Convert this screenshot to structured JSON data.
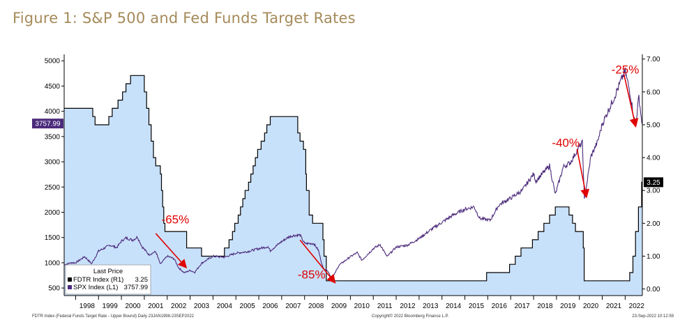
{
  "figure_title": "Figure 1: S&P 500 and Fed Funds Target Rates",
  "footer_left": "FDTR Index (Federal Funds Target Rate - Upper Bound)  Daily 23JAN1998-23SEP2022",
  "footer_center": "Copyright© 2022 Bloomberg Finance L.P.",
  "footer_right": "23-Sep-2022 10:12:59",
  "colors": {
    "spx": "#4b2a7b",
    "fdtr_line": "#000000",
    "fdtr_fill": "#c8e1fb",
    "annotation": "#e00000"
  },
  "chart_data": {
    "type": "line",
    "x_range": [
      1997.5,
      2022.75
    ],
    "y_left": {
      "range": [
        350,
        5100
      ],
      "ticks": [
        500,
        1000,
        1500,
        2000,
        2500,
        3000,
        3500,
        4000,
        4500,
        5000
      ]
    },
    "y_right": {
      "range": [
        -0.2,
        7.1
      ],
      "ticks": [
        "0.00",
        "1.00",
        "2.00",
        "3.00",
        "4.00",
        "5.00",
        "6.00",
        "7.00"
      ]
    },
    "x_ticks": [
      "1998",
      "1999",
      "2000",
      "2001",
      "2002",
      "2003",
      "2004",
      "2005",
      "2006",
      "2007",
      "2008",
      "2009",
      "2010",
      "2011",
      "2012",
      "2013",
      "2014",
      "2015",
      "2016",
      "2017",
      "2018",
      "2019",
      "2020",
      "2021",
      "2022"
    ],
    "legend": {
      "title": "Last Price",
      "placement": "bottom-left",
      "entries": [
        {
          "label": "FDTR Index  (R1)",
          "value": "3.25"
        },
        {
          "label": "SPX Index  (L1)",
          "value": "3757.99"
        }
      ]
    },
    "last_values": {
      "spx": "3757.99",
      "fdtr": "3.25"
    },
    "series": [
      {
        "label": "SPX Index",
        "axis": "left",
        "points": [
          [
            1997.5,
            960
          ],
          [
            1997.8,
            1000
          ],
          [
            1998.0,
            1000
          ],
          [
            1998.4,
            1120
          ],
          [
            1998.7,
            980
          ],
          [
            1999.0,
            1230
          ],
          [
            1999.5,
            1350
          ],
          [
            1999.8,
            1300
          ],
          [
            2000.0,
            1430
          ],
          [
            2000.2,
            1490
          ],
          [
            2000.5,
            1450
          ],
          [
            2000.7,
            1510
          ],
          [
            2000.9,
            1320
          ],
          [
            2001.2,
            1160
          ],
          [
            2001.5,
            1220
          ],
          [
            2001.7,
            970
          ],
          [
            2002.0,
            1130
          ],
          [
            2002.3,
            1080
          ],
          [
            2002.5,
            900
          ],
          [
            2002.75,
            800
          ],
          [
            2003.0,
            850
          ],
          [
            2003.2,
            810
          ],
          [
            2003.5,
            990
          ],
          [
            2004.0,
            1130
          ],
          [
            2004.5,
            1110
          ],
          [
            2005.0,
            1190
          ],
          [
            2005.5,
            1220
          ],
          [
            2006.0,
            1280
          ],
          [
            2006.4,
            1320
          ],
          [
            2006.5,
            1240
          ],
          [
            2007.0,
            1420
          ],
          [
            2007.3,
            1510
          ],
          [
            2007.5,
            1540
          ],
          [
            2007.8,
            1550
          ],
          [
            2008.0,
            1380
          ],
          [
            2008.4,
            1380
          ],
          [
            2008.6,
            1250
          ],
          [
            2008.8,
            900
          ],
          [
            2009.0,
            850
          ],
          [
            2009.2,
            680
          ],
          [
            2009.5,
            950
          ],
          [
            2010.0,
            1120
          ],
          [
            2010.3,
            1200
          ],
          [
            2010.5,
            1050
          ],
          [
            2011.0,
            1280
          ],
          [
            2011.3,
            1360
          ],
          [
            2011.6,
            1120
          ],
          [
            2012.0,
            1310
          ],
          [
            2012.5,
            1350
          ],
          [
            2013.0,
            1480
          ],
          [
            2013.5,
            1650
          ],
          [
            2014.0,
            1800
          ],
          [
            2014.5,
            1950
          ],
          [
            2015.0,
            2060
          ],
          [
            2015.4,
            2110
          ],
          [
            2015.65,
            1880
          ],
          [
            2016.1,
            1840
          ],
          [
            2016.5,
            2150
          ],
          [
            2017.0,
            2280
          ],
          [
            2017.5,
            2430
          ],
          [
            2018.0,
            2760
          ],
          [
            2018.1,
            2620
          ],
          [
            2018.7,
            2920
          ],
          [
            2018.95,
            2350
          ],
          [
            2019.3,
            2900
          ],
          [
            2019.6,
            2980
          ],
          [
            2020.0,
            3300
          ],
          [
            2020.13,
            3380
          ],
          [
            2020.22,
            2240
          ],
          [
            2020.5,
            3100
          ],
          [
            2020.8,
            3400
          ],
          [
            2021.0,
            3750
          ],
          [
            2021.5,
            4250
          ],
          [
            2021.9,
            4700
          ],
          [
            2022.0,
            4790
          ],
          [
            2022.2,
            4400
          ],
          [
            2022.45,
            3700
          ],
          [
            2022.6,
            4300
          ],
          [
            2022.73,
            3758
          ]
        ]
      },
      {
        "label": "FDTR Index",
        "axis": "right",
        "points": [
          [
            1997.5,
            5.5
          ],
          [
            1998.75,
            5.5
          ],
          [
            1998.75,
            5.25
          ],
          [
            1998.85,
            5.25
          ],
          [
            1998.85,
            5.0
          ],
          [
            1999.45,
            5.0
          ],
          [
            1999.45,
            5.25
          ],
          [
            1999.6,
            5.25
          ],
          [
            1999.6,
            5.5
          ],
          [
            1999.85,
            5.5
          ],
          [
            1999.85,
            5.75
          ],
          [
            2000.05,
            5.75
          ],
          [
            2000.05,
            6.0
          ],
          [
            2000.2,
            6.0
          ],
          [
            2000.2,
            6.25
          ],
          [
            2000.4,
            6.25
          ],
          [
            2000.4,
            6.5
          ],
          [
            2001.0,
            6.5
          ],
          [
            2001.0,
            6.0
          ],
          [
            2001.1,
            6.0
          ],
          [
            2001.1,
            5.5
          ],
          [
            2001.2,
            5.5
          ],
          [
            2001.2,
            5.0
          ],
          [
            2001.3,
            5.0
          ],
          [
            2001.3,
            4.5
          ],
          [
            2001.4,
            4.5
          ],
          [
            2001.4,
            4.0
          ],
          [
            2001.5,
            4.0
          ],
          [
            2001.5,
            3.75
          ],
          [
            2001.7,
            3.75
          ],
          [
            2001.7,
            3.5
          ],
          [
            2001.75,
            3.5
          ],
          [
            2001.75,
            3.0
          ],
          [
            2001.8,
            3.0
          ],
          [
            2001.8,
            2.5
          ],
          [
            2001.85,
            2.5
          ],
          [
            2001.85,
            2.0
          ],
          [
            2001.9,
            2.0
          ],
          [
            2001.9,
            1.75
          ],
          [
            2002.85,
            1.75
          ],
          [
            2002.85,
            1.25
          ],
          [
            2003.5,
            1.25
          ],
          [
            2003.5,
            1.0
          ],
          [
            2004.5,
            1.0
          ],
          [
            2004.5,
            1.25
          ],
          [
            2004.7,
            1.25
          ],
          [
            2004.7,
            1.5
          ],
          [
            2004.85,
            1.5
          ],
          [
            2004.85,
            1.75
          ],
          [
            2004.95,
            1.75
          ],
          [
            2004.95,
            2.0
          ],
          [
            2005.1,
            2.0
          ],
          [
            2005.1,
            2.25
          ],
          [
            2005.2,
            2.25
          ],
          [
            2005.2,
            2.5
          ],
          [
            2005.3,
            2.5
          ],
          [
            2005.3,
            2.75
          ],
          [
            2005.4,
            2.75
          ],
          [
            2005.4,
            3.0
          ],
          [
            2005.55,
            3.0
          ],
          [
            2005.55,
            3.25
          ],
          [
            2005.65,
            3.25
          ],
          [
            2005.65,
            3.5
          ],
          [
            2005.75,
            3.5
          ],
          [
            2005.75,
            3.75
          ],
          [
            2005.85,
            3.75
          ],
          [
            2005.85,
            4.0
          ],
          [
            2005.95,
            4.0
          ],
          [
            2005.95,
            4.25
          ],
          [
            2006.1,
            4.25
          ],
          [
            2006.1,
            4.5
          ],
          [
            2006.25,
            4.5
          ],
          [
            2006.25,
            4.75
          ],
          [
            2006.35,
            4.75
          ],
          [
            2006.35,
            5.0
          ],
          [
            2006.5,
            5.0
          ],
          [
            2006.5,
            5.25
          ],
          [
            2007.7,
            5.25
          ],
          [
            2007.7,
            4.75
          ],
          [
            2007.8,
            4.75
          ],
          [
            2007.8,
            4.5
          ],
          [
            2007.95,
            4.5
          ],
          [
            2007.95,
            4.25
          ],
          [
            2008.05,
            4.25
          ],
          [
            2008.05,
            3.5
          ],
          [
            2008.08,
            3.5
          ],
          [
            2008.08,
            3.0
          ],
          [
            2008.2,
            3.0
          ],
          [
            2008.2,
            2.25
          ],
          [
            2008.35,
            2.25
          ],
          [
            2008.35,
            2.0
          ],
          [
            2008.8,
            2.0
          ],
          [
            2008.8,
            1.5
          ],
          [
            2008.85,
            1.5
          ],
          [
            2008.85,
            1.0
          ],
          [
            2008.95,
            1.0
          ],
          [
            2008.95,
            0.25
          ],
          [
            2015.95,
            0.25
          ],
          [
            2015.95,
            0.5
          ],
          [
            2016.95,
            0.5
          ],
          [
            2016.95,
            0.75
          ],
          [
            2017.2,
            0.75
          ],
          [
            2017.2,
            1.0
          ],
          [
            2017.45,
            1.0
          ],
          [
            2017.45,
            1.25
          ],
          [
            2017.95,
            1.25
          ],
          [
            2017.95,
            1.5
          ],
          [
            2018.2,
            1.5
          ],
          [
            2018.2,
            1.75
          ],
          [
            2018.45,
            1.75
          ],
          [
            2018.45,
            2.0
          ],
          [
            2018.7,
            2.0
          ],
          [
            2018.7,
            2.25
          ],
          [
            2018.95,
            2.25
          ],
          [
            2018.95,
            2.5
          ],
          [
            2019.55,
            2.5
          ],
          [
            2019.55,
            2.25
          ],
          [
            2019.7,
            2.25
          ],
          [
            2019.7,
            2.0
          ],
          [
            2019.83,
            2.0
          ],
          [
            2019.83,
            1.75
          ],
          [
            2020.17,
            1.75
          ],
          [
            2020.17,
            1.25
          ],
          [
            2020.21,
            1.25
          ],
          [
            2020.21,
            0.25
          ],
          [
            2022.2,
            0.25
          ],
          [
            2022.2,
            0.5
          ],
          [
            2022.34,
            0.5
          ],
          [
            2022.34,
            1.0
          ],
          [
            2022.45,
            1.0
          ],
          [
            2022.45,
            1.75
          ],
          [
            2022.58,
            1.75
          ],
          [
            2022.58,
            2.5
          ],
          [
            2022.72,
            2.5
          ],
          [
            2022.72,
            3.25
          ],
          [
            2022.75,
            3.25
          ]
        ]
      }
    ],
    "annotations": [
      {
        "text": "-65%",
        "text_at": [
          2001.75,
          1780
        ],
        "arrow_from": [
          2001.5,
          1580
        ],
        "arrow_to": [
          2002.8,
          920
        ]
      },
      {
        "text": "-85%",
        "text_at": [
          2007.7,
          690
        ],
        "arrow_from": [
          2007.8,
          1450
        ],
        "arrow_to": [
          2009.3,
          620
        ]
      },
      {
        "text": "-40%",
        "text_at": [
          2018.8,
          3300
        ],
        "arrow_from": [
          2019.9,
          3250
        ],
        "arrow_to": [
          2020.3,
          2320
        ]
      },
      {
        "text": "-25%",
        "text_at": [
          2021.4,
          4750
        ],
        "arrow_from": [
          2021.95,
          4730
        ],
        "arrow_to": [
          2022.45,
          3720
        ]
      }
    ]
  }
}
